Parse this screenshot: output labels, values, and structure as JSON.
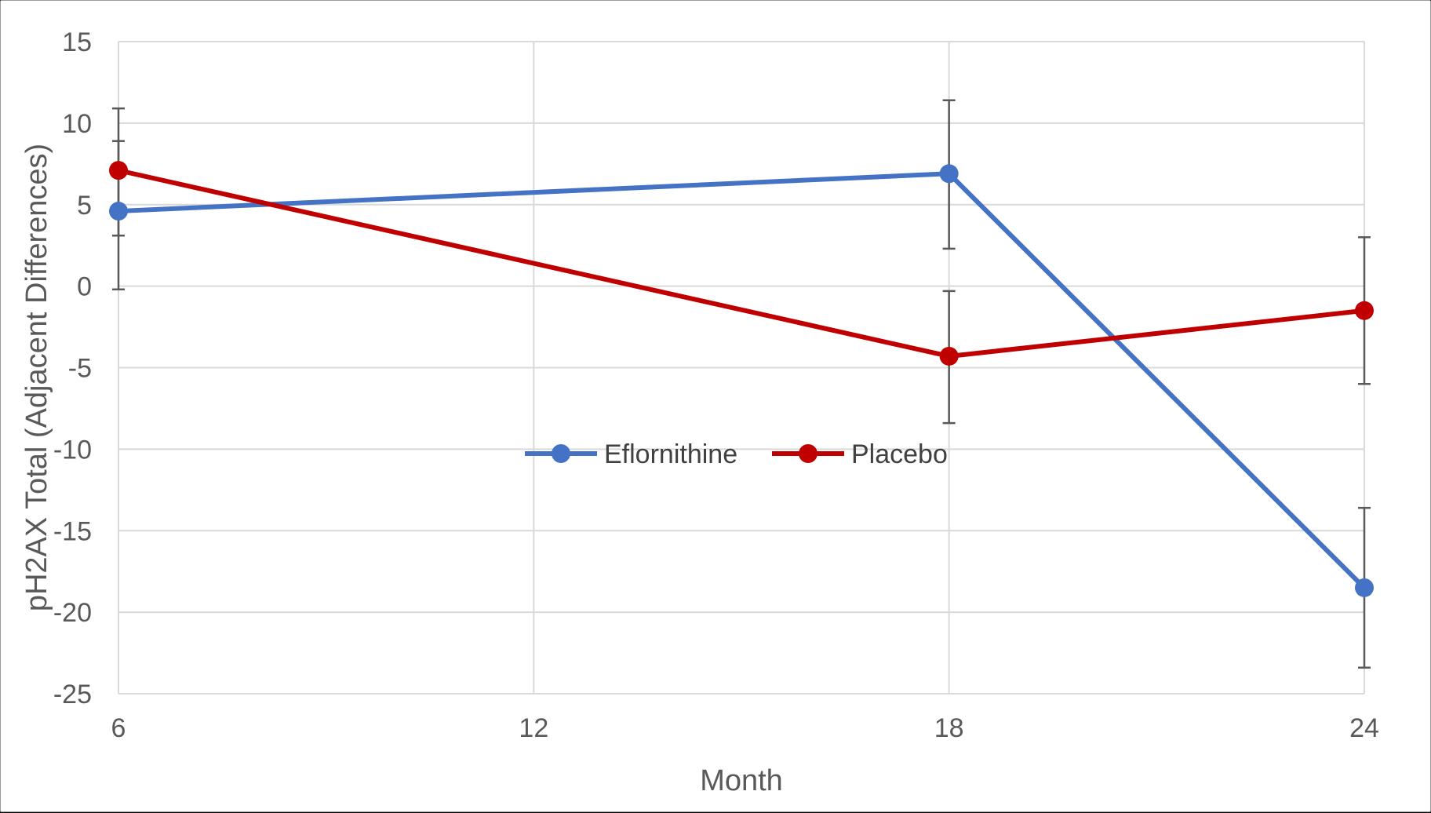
{
  "chart_data": {
    "type": "line",
    "title": "",
    "xlabel": "Month",
    "ylabel": "pH2AX Total (Adjacent Differences)",
    "xlim": [
      6,
      24
    ],
    "ylim": [
      -25,
      15
    ],
    "x_ticks": [
      6,
      12,
      18,
      24
    ],
    "y_ticks": [
      15,
      10,
      5,
      0,
      -5,
      -10,
      -15,
      -20,
      -25
    ],
    "grid": true,
    "legend_position": "center",
    "series": [
      {
        "name": "Eflornithine",
        "color": "#4472C4",
        "points": [
          {
            "x": 6,
            "y": 4.6,
            "err_low": -0.2,
            "err_high": 10.9
          },
          {
            "x": 18,
            "y": 6.9,
            "err_low": 2.3,
            "err_high": 11.4
          },
          {
            "x": 24,
            "y": -18.5,
            "err_low": -23.4,
            "err_high": -13.6
          }
        ]
      },
      {
        "name": "Placebo",
        "color": "#C00000",
        "points": [
          {
            "x": 6,
            "y": 7.1,
            "err_low": 3.1,
            "err_high": 8.9
          },
          {
            "x": 18,
            "y": -4.3,
            "err_low": -8.4,
            "err_high": -0.3
          },
          {
            "x": 24,
            "y": -1.5,
            "err_low": -6.0,
            "err_high": 3.0
          }
        ]
      }
    ]
  }
}
